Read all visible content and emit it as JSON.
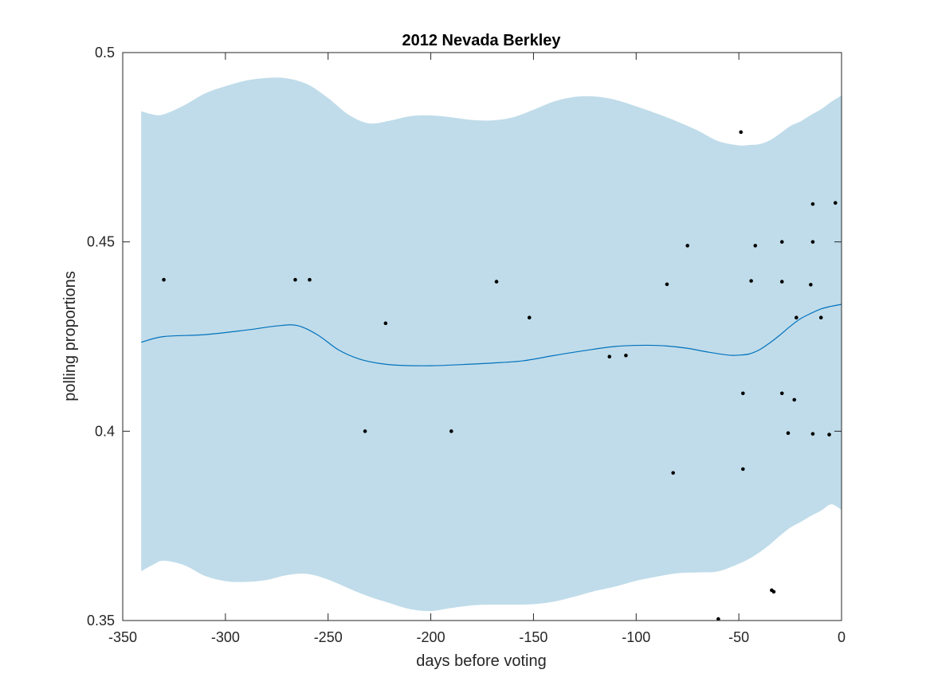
{
  "chart_data": {
    "type": "line",
    "title": "2012 Nevada Berkley",
    "xlabel": "days before voting",
    "ylabel": "polling proportions",
    "xlim": [
      -350,
      0
    ],
    "ylim": [
      0.35,
      0.5
    ],
    "xticks": [
      -350,
      -300,
      -250,
      -200,
      -150,
      -100,
      -50,
      0
    ],
    "yticks": [
      0.35,
      0.4,
      0.45,
      0.5
    ],
    "xtick_labels": [
      "-350",
      "-300",
      "-250",
      "-200",
      "-150",
      "-100",
      "-50",
      "0"
    ],
    "ytick_labels": [
      "0.35",
      "0.4",
      "0.45",
      "0.5"
    ],
    "grid": false,
    "colors": {
      "band": "#c0dcea",
      "line": "#0072bd",
      "points": "#000000"
    },
    "band": {
      "x": [
        -341,
        -335,
        -330,
        -320,
        -310,
        -300,
        -290,
        -280,
        -270,
        -260,
        -250,
        -240,
        -230,
        -220,
        -210,
        -200,
        -190,
        -180,
        -170,
        -160,
        -150,
        -140,
        -130,
        -120,
        -110,
        -100,
        -90,
        -80,
        -70,
        -60,
        -50,
        -45,
        -40,
        -35,
        -30,
        -25,
        -20,
        -15,
        -10,
        -5,
        0
      ],
      "upper": [
        0.4845,
        0.4836,
        0.4837,
        0.4861,
        0.4892,
        0.4911,
        0.4926,
        0.4933,
        0.4932,
        0.4916,
        0.488,
        0.4836,
        0.4813,
        0.482,
        0.4832,
        0.4834,
        0.4829,
        0.4822,
        0.4821,
        0.4829,
        0.4849,
        0.4871,
        0.4883,
        0.4884,
        0.4875,
        0.4858,
        0.4839,
        0.4818,
        0.4794,
        0.4766,
        0.4755,
        0.4756,
        0.4758,
        0.4768,
        0.4786,
        0.4806,
        0.4818,
        0.4835,
        0.485,
        0.487,
        0.4887
      ],
      "lower": [
        0.363,
        0.3648,
        0.3658,
        0.3646,
        0.3618,
        0.3604,
        0.3602,
        0.3607,
        0.362,
        0.3623,
        0.3608,
        0.3585,
        0.3563,
        0.3546,
        0.353,
        0.3525,
        0.3533,
        0.354,
        0.3542,
        0.3542,
        0.3543,
        0.355,
        0.3563,
        0.3578,
        0.359,
        0.3605,
        0.3616,
        0.3625,
        0.3627,
        0.363,
        0.365,
        0.3663,
        0.368,
        0.37,
        0.3724,
        0.3745,
        0.376,
        0.3776,
        0.379,
        0.3807,
        0.3792
      ]
    },
    "series": [
      {
        "type": "line",
        "x": [
          -341,
          -330,
          -310,
          -290,
          -275,
          -265,
          -255,
          -245,
          -235,
          -225,
          -215,
          -200,
          -185,
          -170,
          -155,
          -140,
          -125,
          -110,
          -95,
          -85,
          -75,
          -65,
          -55,
          -50,
          -45,
          -40,
          -35,
          -30,
          -25,
          -20,
          -15,
          -10,
          -5,
          0
        ],
        "y": [
          0.4235,
          0.425,
          0.4255,
          0.4267,
          0.4278,
          0.4279,
          0.4254,
          0.4215,
          0.4191,
          0.4179,
          0.4174,
          0.4173,
          0.4176,
          0.418,
          0.4186,
          0.42,
          0.4213,
          0.4224,
          0.4227,
          0.4225,
          0.4219,
          0.4209,
          0.4201,
          0.4201,
          0.4204,
          0.4215,
          0.4233,
          0.4254,
          0.4277,
          0.4297,
          0.4311,
          0.4323,
          0.433,
          0.4335
        ]
      },
      {
        "type": "scatter",
        "x": [
          -330,
          -266,
          -259,
          -232,
          -222,
          -190,
          -168,
          -152,
          -113,
          -105,
          -85,
          -82,
          -75,
          -49,
          -48,
          -48,
          -44,
          -42,
          -34,
          -33,
          -29,
          -29,
          -29,
          -26,
          -23,
          -22,
          -15,
          -14,
          -14,
          -14,
          -10,
          -6,
          -3,
          -60
        ],
        "y": [
          0.44,
          0.44,
          0.44,
          0.4,
          0.4285,
          0.4,
          0.4395,
          0.43,
          0.4197,
          0.42,
          0.4388,
          0.389,
          0.449,
          0.479,
          0.41,
          0.39,
          0.4397,
          0.449,
          0.358,
          0.3576,
          0.45,
          0.4395,
          0.41,
          0.3995,
          0.4083,
          0.43,
          0.4387,
          0.46,
          0.45,
          0.3993,
          0.43,
          0.3991,
          0.4603,
          0.3504
        ]
      }
    ]
  }
}
